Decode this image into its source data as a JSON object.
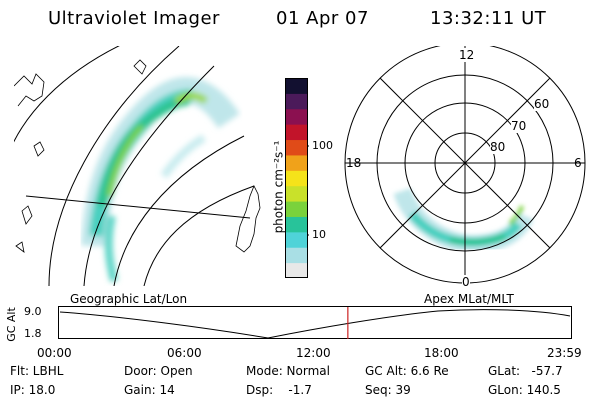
{
  "header": {
    "instrument": "Ultraviolet Imager",
    "date": "01 Apr 07",
    "time": "13:32:11 UT"
  },
  "colorbar": {
    "unit": "photon cm⁻²s⁻¹",
    "tick_labels": [
      "100",
      "10"
    ],
    "colors": [
      "#e8e8e8",
      "#a9dfe5",
      "#4fd3d8",
      "#28c39a",
      "#7ad23c",
      "#c9e12a",
      "#f5e31a",
      "#f0a21a",
      "#e04b18",
      "#c2142a",
      "#8b1050",
      "#4b1a5a",
      "#121030"
    ]
  },
  "left_panel": {
    "projection_label": "Geographic Lat/Lon"
  },
  "right_panel": {
    "projection_label": "Apex MLat/MLT",
    "mlt_labels": [
      "12",
      "18",
      "6",
      "0"
    ],
    "mlat_labels": [
      "60",
      "70",
      "80"
    ]
  },
  "timeline": {
    "y_axis_title": "GC Alt",
    "y_ticks": [
      "9.0",
      "1.8"
    ],
    "x_ticks": [
      "00:00",
      "06:00",
      "12:00",
      "18:00",
      "23:59"
    ],
    "marker_time_hours": 13.54,
    "marker_color": "#cc2222"
  },
  "status": {
    "flt": "Flt: LBHL",
    "ip": "IP: 18.0",
    "door": "Door: Open",
    "gain": "Gain: 14",
    "mode": "Mode: Normal",
    "dsp": "Dsp:    -1.7",
    "gc_alt": "GC Alt: 6.6 Re",
    "seq": "Seq: 39",
    "glat": "GLat:   -57.7",
    "glon": "GLon: 140.5"
  }
}
